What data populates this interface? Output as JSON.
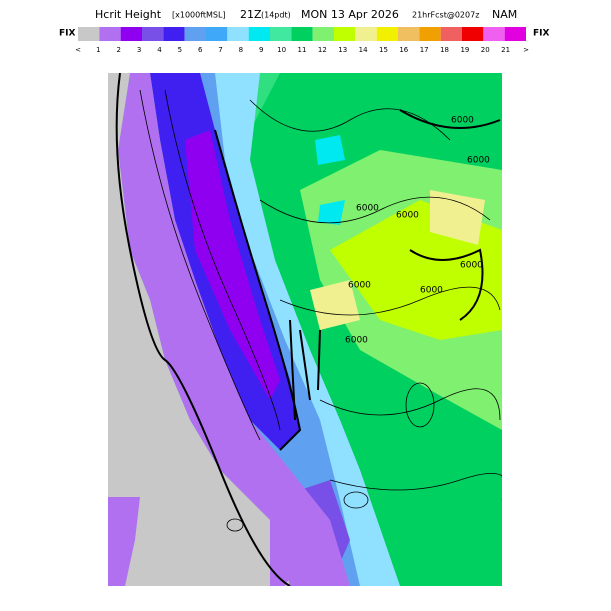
{
  "title": {
    "name": "Hcrit Height",
    "units": "[x1000ftMSL]",
    "valid": "21Z",
    "local": "(14pdt)",
    "date": "MON 13 Apr 2026",
    "forecast": "21hrFcst@0207z",
    "model": "NAM"
  },
  "colorbar": {
    "left_label": "FIX",
    "right_label": "FIX",
    "labels": [
      "<",
      "1",
      "2",
      "3",
      "4",
      "5",
      "6",
      "7",
      "8",
      "9",
      "10",
      "11",
      "12",
      "13",
      "14",
      "15",
      "16",
      "17",
      "18",
      "19",
      "20",
      "21",
      ">"
    ],
    "colors": [
      "#c8c8c8",
      "#b070f0",
      "#9000f0",
      "#7850e8",
      "#4020f0",
      "#60a0f0",
      "#40a8f8",
      "#90e0ff",
      "#00e8f0",
      "#40e8a0",
      "#00d060",
      "#80f070",
      "#c0ff00",
      "#f0f090",
      "#f0f000",
      "#f0c060",
      "#f0a000",
      "#f06060",
      "#f00000",
      "#f060f0",
      "#e000e0"
    ]
  },
  "contour_labels": [
    "6000",
    "6000",
    "6000",
    "6000",
    "6000",
    "6000",
    "6000",
    "6000"
  ]
}
